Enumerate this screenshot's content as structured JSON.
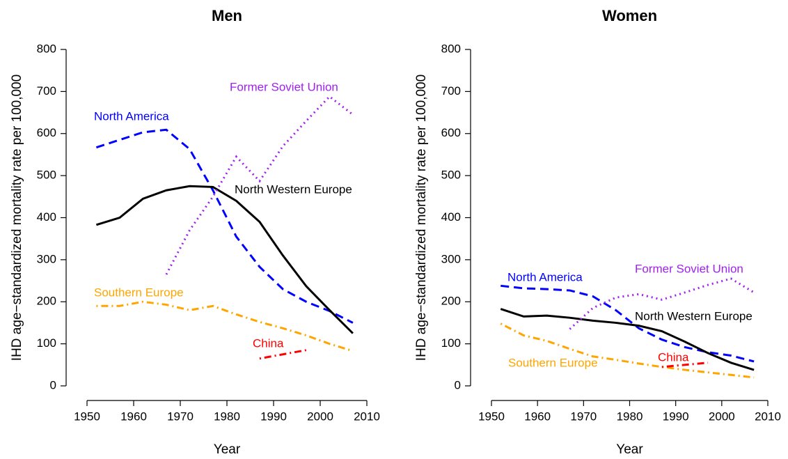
{
  "chart_data": [
    {
      "type": "line",
      "title": "Men",
      "xlabel": "Year",
      "ylabel": "IHD age−standardized mortality rate per 100,000",
      "x": [
        1952,
        1957,
        1962,
        1967,
        1972,
        1977,
        1982,
        1987,
        1992,
        1997,
        2002,
        2007
      ],
      "xlim": [
        1950,
        2010
      ],
      "xticks": [
        1950,
        1960,
        1970,
        1980,
        1990,
        2000,
        2010
      ],
      "ylim": [
        0,
        800
      ],
      "yticks": [
        0,
        100,
        200,
        300,
        400,
        500,
        600,
        700,
        800
      ],
      "series": [
        {
          "name": "North America",
          "color": "#0000ff",
          "dash": "dashed",
          "values": [
            567,
            585,
            603,
            609,
            563,
            465,
            355,
            283,
            230,
            200,
            178,
            150
          ]
        },
        {
          "name": "North Western Europe",
          "color": "#000000",
          "dash": "solid",
          "values": [
            383,
            400,
            445,
            465,
            475,
            473,
            440,
            390,
            310,
            237,
            180,
            125
          ]
        },
        {
          "name": "Former Soviet Union",
          "color": "#a020f0",
          "dash": "dotted",
          "values": [
            null,
            null,
            null,
            265,
            370,
            450,
            545,
            487,
            570,
            630,
            688,
            645
          ]
        },
        {
          "name": "Southern Europe",
          "color": "#ffa500",
          "dash": "dotdash",
          "values": [
            190,
            190,
            200,
            193,
            180,
            190,
            170,
            152,
            137,
            120,
            100,
            83
          ]
        },
        {
          "name": "China",
          "color": "#ff0000",
          "dash": "dotdash",
          "values": [
            null,
            null,
            null,
            null,
            null,
            null,
            null,
            65,
            75,
            85,
            null,
            null
          ]
        }
      ]
    },
    {
      "type": "line",
      "title": "Women",
      "xlabel": "Year",
      "ylabel": "IHD age−standardized mortality rate per 100,000",
      "x": [
        1952,
        1957,
        1962,
        1967,
        1972,
        1977,
        1982,
        1987,
        1992,
        1997,
        2002,
        2007
      ],
      "xlim": [
        1950,
        2010
      ],
      "xticks": [
        1950,
        1960,
        1970,
        1980,
        1990,
        2000,
        2010
      ],
      "ylim": [
        0,
        800
      ],
      "yticks": [
        0,
        100,
        200,
        300,
        400,
        500,
        600,
        700,
        800
      ],
      "series": [
        {
          "name": "North America",
          "color": "#0000ff",
          "dash": "dashed",
          "values": [
            238,
            232,
            230,
            227,
            213,
            180,
            137,
            110,
            92,
            80,
            72,
            58
          ]
        },
        {
          "name": "North Western Europe",
          "color": "#000000",
          "dash": "solid",
          "values": [
            183,
            165,
            167,
            162,
            155,
            150,
            143,
            130,
            105,
            78,
            55,
            38
          ]
        },
        {
          "name": "Former Soviet Union",
          "color": "#a020f0",
          "dash": "dotted",
          "values": [
            null,
            null,
            null,
            135,
            185,
            210,
            218,
            205,
            222,
            240,
            255,
            222
          ]
        },
        {
          "name": "Southern Europe",
          "color": "#ffa500",
          "dash": "dotdash",
          "values": [
            148,
            120,
            107,
            88,
            70,
            62,
            53,
            45,
            38,
            32,
            26,
            20
          ]
        },
        {
          "name": "China",
          "color": "#ff0000",
          "dash": "dotdash",
          "values": [
            null,
            null,
            null,
            null,
            null,
            null,
            null,
            45,
            50,
            55,
            null,
            null
          ]
        }
      ]
    }
  ]
}
